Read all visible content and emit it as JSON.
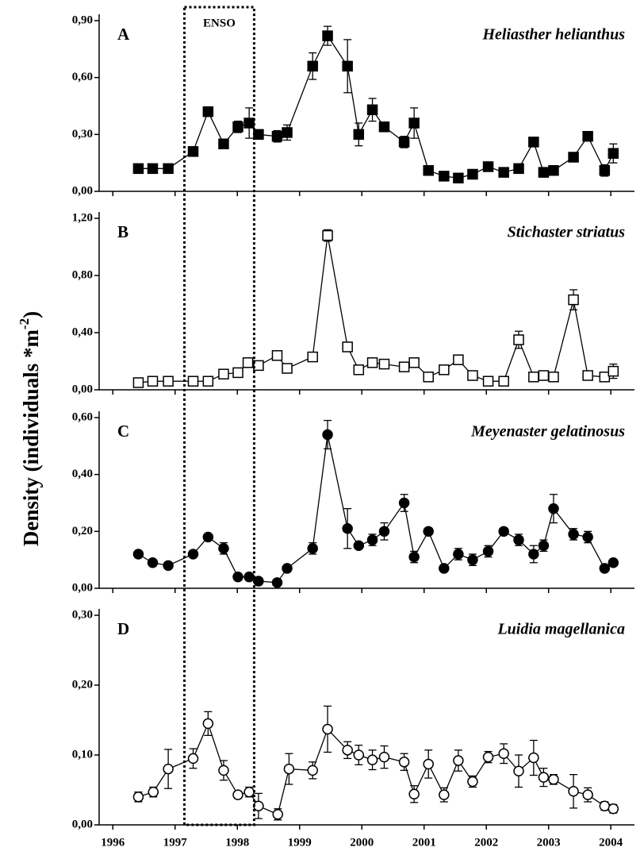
{
  "y_label": {
    "text": "Density (individuals *m",
    "sup": "-2",
    "end": ")"
  },
  "annotation": {
    "text": "ENSO",
    "x_range": [
      1997.15,
      1998.27
    ]
  },
  "chart_data": [
    {
      "type": "line",
      "letter": "A",
      "title": "Heliasther helianthus",
      "marker": "square",
      "marker_fill": "#000000",
      "color": "#000000",
      "xlim": [
        1995.78,
        2004.38
      ],
      "xticks": [
        1996,
        1997,
        1998,
        1999,
        2000,
        2001,
        2002,
        2003,
        2004
      ],
      "xtick_labels": false,
      "ylim": [
        0,
        0.9
      ],
      "yticks": [
        {
          "value": 0,
          "label": "0,00"
        },
        {
          "value": 0.3,
          "label": "0,30"
        },
        {
          "value": 0.6,
          "label": "0,60"
        },
        {
          "value": 0.9,
          "label": "0,90"
        }
      ],
      "x": [
        1996.41,
        1996.64,
        1996.89,
        1997.29,
        1997.53,
        1997.78,
        1998.01,
        1998.19,
        1998.34,
        1998.64,
        1998.8,
        1999.21,
        1999.45,
        1999.77,
        1999.95,
        2000.17,
        2000.36,
        2000.68,
        2000.84,
        2001.07,
        2001.32,
        2001.55,
        2001.78,
        2002.03,
        2002.28,
        2002.52,
        2002.76,
        2002.92,
        2003.08,
        2003.4,
        2003.63,
        2003.9,
        2004.04
      ],
      "values": [
        0.12,
        0.12,
        0.12,
        0.21,
        0.42,
        0.25,
        0.34,
        0.36,
        0.3,
        0.29,
        0.31,
        0.66,
        0.82,
        0.66,
        0.3,
        0.43,
        0.34,
        0.26,
        0.36,
        0.11,
        0.08,
        0.07,
        0.09,
        0.13,
        0.1,
        0.12,
        0.26,
        0.1,
        0.11,
        0.18,
        0.29,
        0.11,
        0.2
      ],
      "errors": [
        0.01,
        0.01,
        0.02,
        0.02,
        0.02,
        0.02,
        0.03,
        0.08,
        0.02,
        0.03,
        0.04,
        0.07,
        0.05,
        0.14,
        0.06,
        0.06,
        0.02,
        0.03,
        0.08,
        0.02,
        0.01,
        0.01,
        0.02,
        0.02,
        0.01,
        0.02,
        0.02,
        0.01,
        0.01,
        0.02,
        0.01,
        0.03,
        0.05
      ]
    },
    {
      "type": "line",
      "letter": "B",
      "title": "Stichaster striatus",
      "marker": "square",
      "marker_fill": "#ffffff",
      "color": "#000000",
      "xlim": [
        1995.78,
        2004.38
      ],
      "xticks": [
        1996,
        1997,
        1998,
        1999,
        2000,
        2001,
        2002,
        2003,
        2004
      ],
      "xtick_labels": false,
      "ylim": [
        0,
        1.2
      ],
      "yticks": [
        {
          "value": 0,
          "label": "0,00"
        },
        {
          "value": 0.4,
          "label": "0,40"
        },
        {
          "value": 0.8,
          "label": "0,80"
        },
        {
          "value": 1.2,
          "label": "1,20"
        }
      ],
      "x": [
        1996.41,
        1996.64,
        1996.89,
        1997.29,
        1997.53,
        1997.78,
        1998.01,
        1998.17,
        1998.34,
        1998.64,
        1998.8,
        1999.21,
        1999.45,
        1999.77,
        1999.95,
        2000.17,
        2000.36,
        2000.68,
        2000.84,
        2001.07,
        2001.32,
        2001.55,
        2001.78,
        2002.03,
        2002.28,
        2002.52,
        2002.76,
        2002.92,
        2003.08,
        2003.4,
        2003.63,
        2003.9,
        2004.04
      ],
      "values": [
        0.05,
        0.06,
        0.06,
        0.06,
        0.06,
        0.11,
        0.12,
        0.19,
        0.17,
        0.24,
        0.15,
        0.23,
        1.08,
        0.3,
        0.14,
        0.19,
        0.18,
        0.16,
        0.19,
        0.09,
        0.14,
        0.21,
        0.1,
        0.06,
        0.06,
        0.35,
        0.09,
        0.1,
        0.09,
        0.63,
        0.1,
        0.09,
        0.13
      ],
      "errors": [
        0.01,
        0.01,
        0.01,
        0.01,
        0.01,
        0.02,
        0.02,
        0.03,
        0.02,
        0.03,
        0.02,
        0.03,
        0.04,
        0.03,
        0.02,
        0.02,
        0.02,
        0.02,
        0.02,
        0.01,
        0.02,
        0.02,
        0.01,
        0.01,
        0.01,
        0.06,
        0.01,
        0.02,
        0.01,
        0.07,
        0.01,
        0.02,
        0.05
      ]
    },
    {
      "type": "line",
      "letter": "C",
      "title": "Meyenaster gelatinosus",
      "marker": "circle",
      "marker_fill": "#000000",
      "color": "#000000",
      "xlim": [
        1995.78,
        2004.38
      ],
      "xticks": [
        1996,
        1997,
        1998,
        1999,
        2000,
        2001,
        2002,
        2003,
        2004
      ],
      "xtick_labels": false,
      "ylim": [
        0,
        0.6
      ],
      "yticks": [
        {
          "value": 0,
          "label": "0,00"
        },
        {
          "value": 0.2,
          "label": "0,20"
        },
        {
          "value": 0.4,
          "label": "0,40"
        },
        {
          "value": 0.6,
          "label": "0,60"
        }
      ],
      "x": [
        1996.41,
        1996.64,
        1996.89,
        1997.29,
        1997.53,
        1997.78,
        1998.01,
        1998.19,
        1998.34,
        1998.64,
        1998.8,
        1999.21,
        1999.45,
        1999.77,
        1999.95,
        2000.17,
        2000.36,
        2000.68,
        2000.84,
        2001.07,
        2001.32,
        2001.55,
        2001.78,
        2002.03,
        2002.28,
        2002.52,
        2002.76,
        2002.92,
        2003.08,
        2003.4,
        2003.63,
        2003.9,
        2004.04
      ],
      "values": [
        0.12,
        0.09,
        0.08,
        0.12,
        0.18,
        0.14,
        0.04,
        0.04,
        0.025,
        0.02,
        0.07,
        0.14,
        0.54,
        0.21,
        0.15,
        0.17,
        0.2,
        0.3,
        0.11,
        0.2,
        0.07,
        0.12,
        0.1,
        0.13,
        0.2,
        0.17,
        0.12,
        0.15,
        0.28,
        0.19,
        0.18,
        0.07,
        0.09
      ],
      "errors": [
        0.01,
        0.01,
        0.01,
        0.01,
        0.01,
        0.02,
        0.01,
        0.01,
        0.01,
        0.01,
        0.01,
        0.02,
        0.05,
        0.07,
        0.01,
        0.02,
        0.03,
        0.03,
        0.02,
        0.01,
        0.01,
        0.02,
        0.02,
        0.02,
        0.01,
        0.02,
        0.03,
        0.02,
        0.05,
        0.02,
        0.02,
        0.01,
        0.01
      ]
    },
    {
      "type": "line",
      "letter": "D",
      "title": "Luidia magellanica",
      "marker": "circle",
      "marker_fill": "#ffffff",
      "color": "#000000",
      "xlim": [
        1995.78,
        2004.38
      ],
      "xticks": [
        1996,
        1997,
        1998,
        1999,
        2000,
        2001,
        2002,
        2003,
        2004
      ],
      "xtick_labels": true,
      "ylim": [
        0,
        0.3
      ],
      "yticks": [
        {
          "value": 0,
          "label": "0,00"
        },
        {
          "value": 0.1,
          "label": "0,10"
        },
        {
          "value": 0.2,
          "label": "0,20"
        },
        {
          "value": 0.3,
          "label": "0,30"
        }
      ],
      "x": [
        1996.41,
        1996.65,
        1996.89,
        1997.29,
        1997.53,
        1997.78,
        1998.01,
        1998.19,
        1998.34,
        1998.65,
        1998.83,
        1999.21,
        1999.45,
        1999.77,
        1999.95,
        2000.17,
        2000.36,
        2000.68,
        2000.84,
        2001.07,
        2001.32,
        2001.55,
        2001.78,
        2002.03,
        2002.28,
        2002.52,
        2002.76,
        2002.92,
        2003.08,
        2003.4,
        2003.63,
        2003.9,
        2004.04
      ],
      "values": [
        0.04,
        0.047,
        0.08,
        0.095,
        0.145,
        0.078,
        0.043,
        0.047,
        0.027,
        0.015,
        0.08,
        0.078,
        0.137,
        0.107,
        0.1,
        0.093,
        0.097,
        0.09,
        0.044,
        0.087,
        0.043,
        0.092,
        0.062,
        0.097,
        0.102,
        0.077,
        0.096,
        0.068,
        0.065,
        0.048,
        0.043,
        0.027,
        0.023
      ],
      "errors": [
        0.007,
        0.007,
        0.028,
        0.014,
        0.017,
        0.014,
        0.005,
        0.007,
        0.018,
        0.008,
        0.022,
        0.012,
        0.033,
        0.012,
        0.014,
        0.014,
        0.016,
        0.012,
        0.012,
        0.02,
        0.01,
        0.015,
        0.008,
        0.008,
        0.014,
        0.023,
        0.025,
        0.013,
        0.007,
        0.024,
        0.01,
        0.006,
        0.006
      ]
    }
  ]
}
